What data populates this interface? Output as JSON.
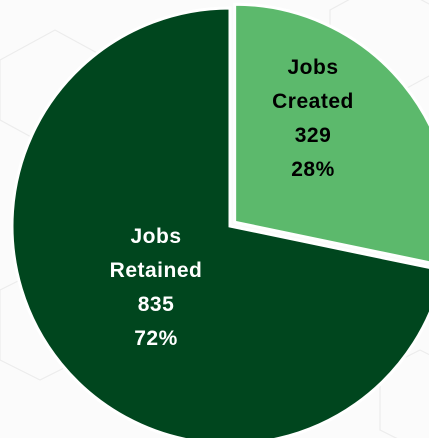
{
  "chart_data": {
    "type": "pie",
    "slices": [
      {
        "name": "Jobs Created",
        "label_lines": [
          "Jobs",
          "Created",
          "329",
          "28%"
        ],
        "value": 329,
        "percent": 28,
        "color": "#5cb96c",
        "label_color": "#000000"
      },
      {
        "name": "Jobs Retained",
        "label_lines": [
          "Jobs",
          "Retained",
          "835",
          "72%"
        ],
        "value": 835,
        "percent": 72,
        "color": "#00461e",
        "label_color": "#ffffff"
      }
    ],
    "start_angle_deg": 0,
    "direction": "clockwise",
    "separator_color": "#ffffff",
    "background_color": "#fbfbfb"
  }
}
